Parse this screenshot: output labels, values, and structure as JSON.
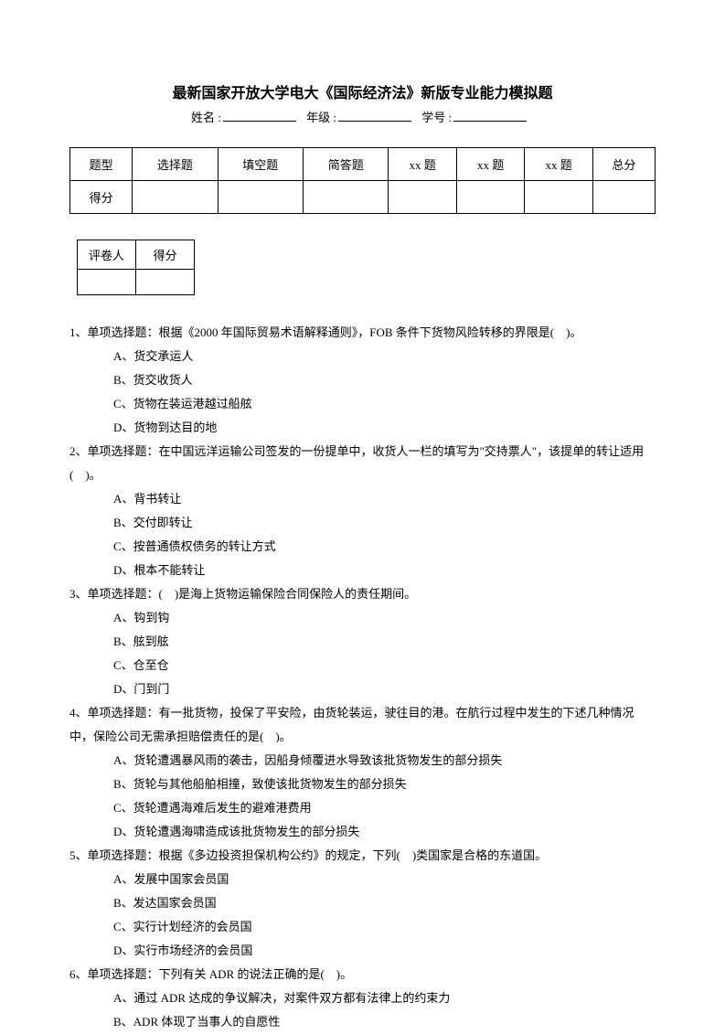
{
  "title": "最新国家开放大学电大《国际经济法》新版专业能力模拟题",
  "info": {
    "name_label": "姓名 :",
    "grade_label": "年级 :",
    "id_label": "学号 :"
  },
  "type_table": {
    "headers": [
      "题型",
      "选择题",
      "填空题",
      "简答题",
      "xx 题",
      "xx 题",
      "xx 题",
      "总分"
    ],
    "row_label": "得分"
  },
  "score_table": {
    "headers": [
      "评卷人",
      "得分"
    ]
  },
  "questions": [
    {
      "stem": "1、单项选择题：根据《2000 年国际贸易术语解释通则》，FOB 条件下货物风险转移的界限是(　)。",
      "options": [
        "A、货交承运人",
        "B、货交收货人",
        "C、货物在装运港越过船舷",
        "D、货物到达目的地"
      ]
    },
    {
      "stem": "2、单项选择题：在中国远洋运输公司签发的一份提单中，收货人一栏的填写为\"交持票人\"，该提单的转让适用(　)。",
      "options": [
        "A、背书转让",
        "B、交付即转让",
        "C、按普通债权债务的转让方式",
        "D、根本不能转让"
      ]
    },
    {
      "stem": "3、单项选择题：(　)是海上货物运输保险合同保险人的责任期间。",
      "options": [
        "A、钩到钩",
        "B、舷到舷",
        "C、仓至仓",
        "D、门到门"
      ]
    },
    {
      "stem": "4、单项选择题：有一批货物，投保了平安险，由货轮装运，驶往目的港。在航行过程中发生的下述几种情况中，保险公司无需承担赔偿责任的是(　)。",
      "options": [
        "A、货轮遭遇暴风雨的袭击，因船身倾覆进水导致该批货物发生的部分损失",
        "B、货轮与其他船舶相撞，致使该批货物发生的部分损失",
        "C、货轮遭遇海难后发生的避难港费用",
        "D、货轮遭遇海啸造成该批货物发生的部分损失"
      ]
    },
    {
      "stem": "5、单项选择题：根据《多边投资担保机构公约》的规定，下列(　)类国家是合格的东道国。",
      "options": [
        "A、发展中国家会员国",
        "B、发达国家会员国",
        "C、实行计划经济的会员国",
        "D、实行市场经济的会员国"
      ]
    },
    {
      "stem": "6、单项选择题：下列有关 ADR 的说法正确的是(　)。",
      "options": [
        "A、通过 ADR 达成的争议解决，对案件双方都有法律上的约束力",
        "B、ADR 体现了当事人的自愿性"
      ]
    }
  ]
}
